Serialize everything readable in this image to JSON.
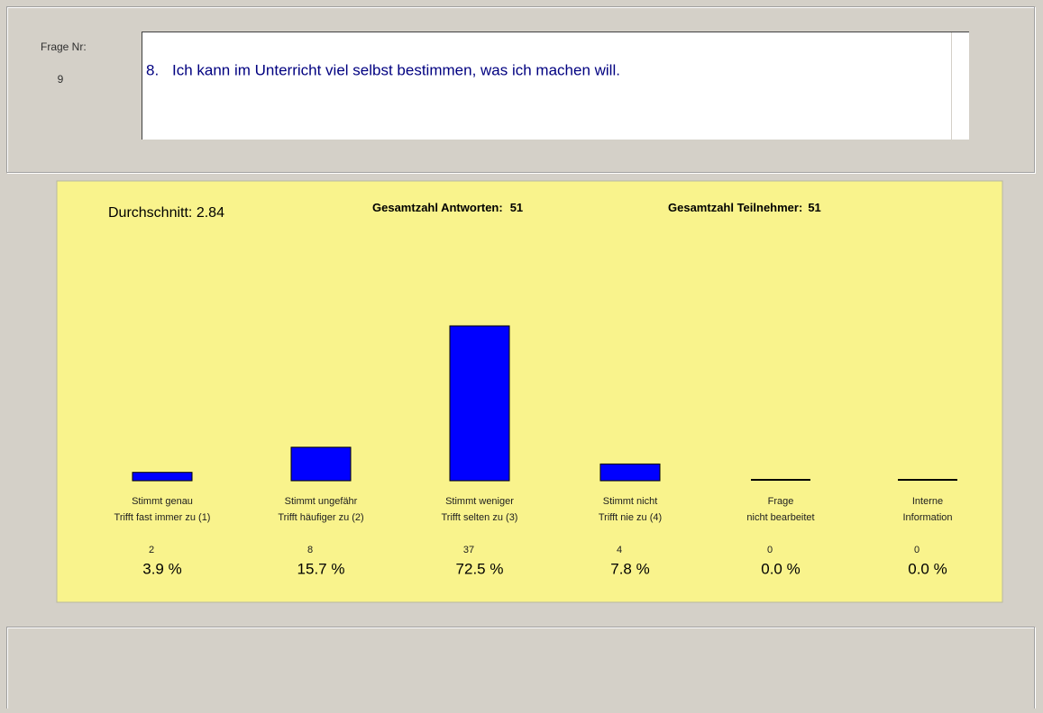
{
  "header": {
    "frage_label": "Frage Nr:",
    "frage_nr": 9,
    "question_number": "8.",
    "question_text": "Ich kann im Unterricht viel selbst bestimmen, was ich machen will."
  },
  "summary": {
    "average_label": "Durchschnitt:",
    "average": 2.84,
    "answers_label": "Gesamtzahl Antworten:",
    "answers": 51,
    "participants_label": "Gesamtzahl Teilnehmer:",
    "participants": 51
  },
  "chart_data": {
    "type": "bar",
    "color": "#0000ff",
    "categories": [
      [
        "Stimmt genau",
        "Trifft fast immer zu (1)"
      ],
      [
        "Stimmt ungefähr",
        "Trifft häufiger zu (2)"
      ],
      [
        "Stimmt weniger",
        "Trifft selten zu (3)"
      ],
      [
        "Stimmt nicht",
        "Trifft nie zu (4)"
      ],
      [
        "Frage",
        "nicht bearbeitet"
      ],
      [
        "Interne",
        "Information"
      ]
    ],
    "values": [
      2,
      8,
      37,
      4,
      0,
      0
    ],
    "percents": [
      3.9,
      15.7,
      72.5,
      7.8,
      0.0,
      0.0
    ],
    "value_labels": [
      "3.9 %",
      "15.7 %",
      "72.5 %",
      "7.8 %",
      "0.0 %",
      "0.0 %"
    ]
  }
}
